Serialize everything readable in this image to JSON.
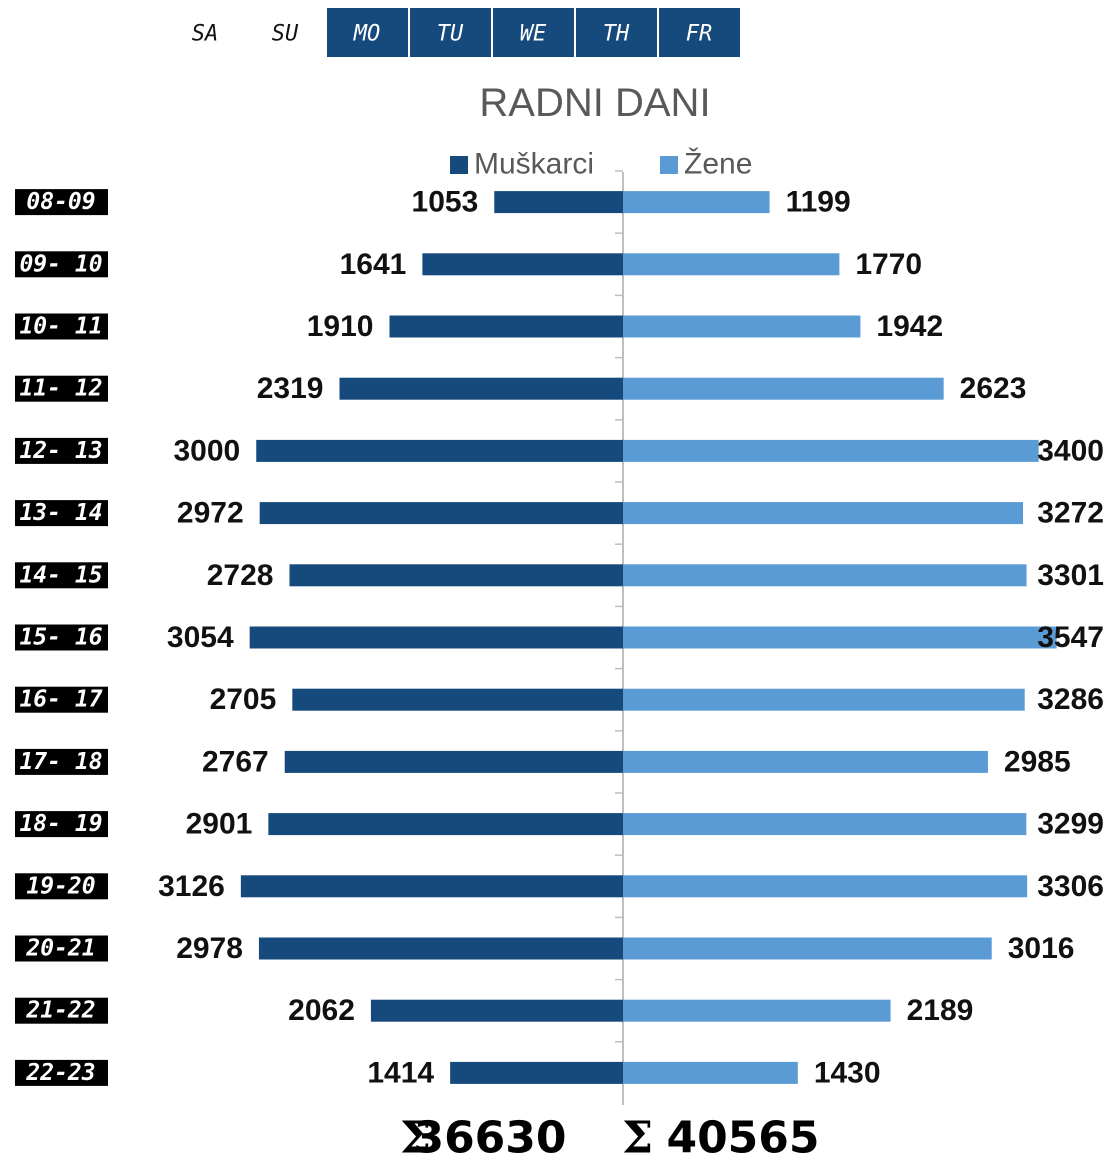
{
  "days": [
    {
      "label": "SA",
      "active": false
    },
    {
      "label": "SU",
      "active": false
    },
    {
      "label": "MO",
      "active": true
    },
    {
      "label": "TU",
      "active": true
    },
    {
      "label": "WE",
      "active": true
    },
    {
      "label": "TH",
      "active": true
    },
    {
      "label": "FR",
      "active": true
    }
  ],
  "chart_data": {
    "type": "butterfly_bar",
    "title": "RADNI DANI",
    "categories": [
      "08-09",
      "09- 10",
      "10- 11",
      "11- 12",
      "12- 13",
      "13- 14",
      "14- 15",
      "15- 16",
      "16- 17",
      "17- 18",
      "18- 19",
      "19-20",
      "20-21",
      "21-22",
      "22-23"
    ],
    "series": [
      {
        "name": "Muškarci",
        "color": "#174a7c",
        "values": [
          1053,
          1641,
          1910,
          2319,
          3000,
          2972,
          2728,
          3054,
          2705,
          2767,
          2901,
          3126,
          2978,
          2062,
          1414
        ]
      },
      {
        "name": "Žene",
        "color": "#5b9bd5",
        "values": [
          1199,
          1770,
          1942,
          2623,
          3400,
          3272,
          3301,
          3547,
          3286,
          2985,
          3299,
          3306,
          3016,
          2189,
          1430
        ]
      }
    ],
    "xlim": [
      -4000,
      4000
    ],
    "legend": "top",
    "totals": {
      "symbol": "Σ",
      "values": [
        36630,
        40565
      ]
    }
  }
}
